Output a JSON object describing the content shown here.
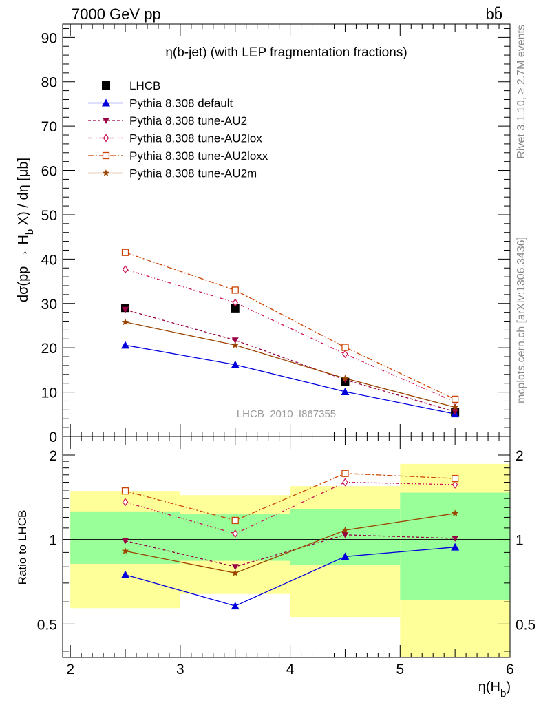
{
  "header": {
    "energy_label": "7000 GeV pp",
    "process_label": "bb̄"
  },
  "side_labels": {
    "rivet": "Rivet 3.1.10, ≥ 2.7M events",
    "mcplots": "mcplots.cern.ch [arXiv:1306.3436]"
  },
  "chart_data": [
    {
      "type": "scatter",
      "title": "η(b-jet) (with LEP fragmentation fractions)",
      "ylabel": "dσ(pp → H_b X) / dη [μb]",
      "xlabel": "",
      "watermark": "LHCB_2010_I867355",
      "xlim": [
        1.93,
        6.0
      ],
      "ylim": [
        0,
        93
      ],
      "yticks": [
        0,
        10,
        20,
        30,
        40,
        50,
        60,
        70,
        80,
        90
      ],
      "x": [
        2.5,
        3.5,
        4.5,
        5.5
      ],
      "legend_position": "top-left",
      "series": [
        {
          "name": "LHCB",
          "values": [
            29.0,
            28.9,
            12.3,
            5.5
          ],
          "color": "#000000",
          "marker": "square"
        },
        {
          "name": "Pythia 8.308 default",
          "values": [
            20.6,
            16.2,
            10.1,
            5.1
          ],
          "color": "#0000dd",
          "marker": "triangle-up",
          "dash": ""
        },
        {
          "name": "Pythia 8.308 tune-AU2",
          "values": [
            28.6,
            21.7,
            12.8,
            5.6
          ],
          "color": "#990044",
          "marker": "triangle-down",
          "dash": "4,3"
        },
        {
          "name": "Pythia 8.308 tune-AU2lox",
          "values": [
            37.7,
            30.2,
            18.6,
            7.8
          ],
          "color": "#cc1155",
          "marker": "diamond-open",
          "dash": "5,3,1,3,1,3"
        },
        {
          "name": "Pythia 8.308 tune-AU2loxx",
          "values": [
            41.5,
            33.0,
            20.1,
            8.4
          ],
          "color": "#cc4400",
          "marker": "square-open",
          "dash": "8,3,2,3"
        },
        {
          "name": "Pythia 8.308 tune-AU2m",
          "values": [
            25.8,
            20.6,
            13.1,
            6.6
          ],
          "color": "#994400",
          "marker": "star",
          "dash": ""
        }
      ]
    },
    {
      "type": "line",
      "ylabel": "Ratio to LHCB",
      "xlabel": "η(H_b)",
      "xlim": [
        1.93,
        6.0
      ],
      "ylim": [
        0.38,
        2.33
      ],
      "yscale": "log",
      "yticks": [
        0.5,
        1,
        2
      ],
      "xticks": [
        2,
        3,
        4,
        5,
        6
      ],
      "bins": [
        [
          2,
          3
        ],
        [
          3,
          4
        ],
        [
          4,
          5
        ],
        [
          5,
          6
        ]
      ],
      "band_outer": [
        [
          0.57,
          1.49
        ],
        [
          0.64,
          1.44
        ],
        [
          0.53,
          1.55
        ],
        [
          0.36,
          1.86
        ]
      ],
      "band_inner": [
        [
          0.82,
          1.26
        ],
        [
          0.84,
          1.23
        ],
        [
          0.81,
          1.28
        ],
        [
          0.61,
          1.47
        ]
      ],
      "x": [
        2.5,
        3.5,
        4.5,
        5.5
      ],
      "series": [
        {
          "name": "Pythia 8.308 default",
          "values": [
            0.75,
            0.58,
            0.87,
            0.94
          ],
          "color": "#0000dd",
          "marker": "triangle-up",
          "dash": ""
        },
        {
          "name": "Pythia 8.308 tune-AU2",
          "values": [
            0.99,
            0.8,
            1.04,
            1.01
          ],
          "color": "#990044",
          "marker": "triangle-down",
          "dash": "4,3"
        },
        {
          "name": "Pythia 8.308 tune-AU2lox",
          "values": [
            1.36,
            1.05,
            1.6,
            1.57
          ],
          "color": "#cc1155",
          "marker": "diamond-open",
          "dash": "5,3,1,3,1,3"
        },
        {
          "name": "Pythia 8.308 tune-AU2loxx",
          "values": [
            1.49,
            1.17,
            1.72,
            1.65
          ],
          "color": "#cc4400",
          "marker": "square-open",
          "dash": "8,3,2,3"
        },
        {
          "name": "Pythia 8.308 tune-AU2m",
          "values": [
            0.91,
            0.76,
            1.08,
            1.24
          ],
          "color": "#994400",
          "marker": "star",
          "dash": ""
        }
      ]
    }
  ]
}
